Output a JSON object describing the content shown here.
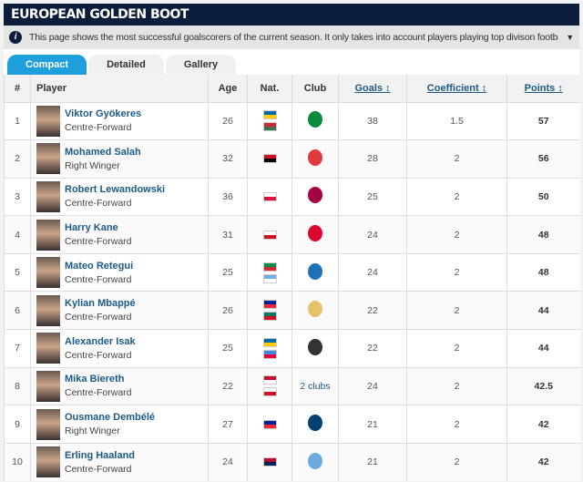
{
  "title": "EUROPEAN GOLDEN BOOT",
  "info": "This page shows the most successful goalscorers of the current season. It only takes into account players playing top divison football in a Euro...",
  "tabs": [
    "Compact",
    "Detailed",
    "Gallery"
  ],
  "headers": {
    "rank": "#",
    "player": "Player",
    "age": "Age",
    "nat": "Nat.",
    "club": "Club",
    "goals": "Goals ↕",
    "coef": "Coefficient ↕",
    "points": "Points ↕"
  },
  "rows": [
    {
      "rank": "1",
      "name": "Viktor Gyökeres",
      "pos": "Centre-Forward",
      "age": "26",
      "flags": [
        [
          "#006aa7",
          "#fecc00"
        ],
        [
          "#ce2939",
          "#477050"
        ]
      ],
      "club": "Sporting CP",
      "clubColor": "#0a8a3c",
      "goals": "38",
      "coef": "1.5",
      "points": "57"
    },
    {
      "rank": "2",
      "name": "Mohamed Salah",
      "pos": "Right Winger",
      "age": "32",
      "flags": [
        [
          "#ce1126",
          "#000000"
        ]
      ],
      "club": "Liverpool",
      "clubColor": "#e03a3e",
      "goals": "28",
      "coef": "2",
      "points": "56"
    },
    {
      "rank": "3",
      "name": "Robert Lewandowski",
      "pos": "Centre-Forward",
      "age": "36",
      "flags": [
        [
          "#ffffff",
          "#dc143c"
        ]
      ],
      "club": "FC Barcelona",
      "clubColor": "#a50044",
      "goals": "25",
      "coef": "2",
      "points": "50"
    },
    {
      "rank": "4",
      "name": "Harry Kane",
      "pos": "Centre-Forward",
      "age": "31",
      "flags": [
        [
          "#ffffff",
          "#ce1124"
        ]
      ],
      "club": "Bayern Munich",
      "clubColor": "#dc052d",
      "goals": "24",
      "coef": "2",
      "points": "48"
    },
    {
      "rank": "5",
      "name": "Mateo Retegui",
      "pos": "Centre-Forward",
      "age": "25",
      "flags": [
        [
          "#009246",
          "#ce2b37"
        ],
        [
          "#74acdf",
          "#ffffff"
        ]
      ],
      "club": "Atalanta",
      "clubColor": "#1e71b8",
      "goals": "24",
      "coef": "2",
      "points": "48"
    },
    {
      "rank": "6",
      "name": "Kylian Mbappé",
      "pos": "Centre-Forward",
      "age": "26",
      "flags": [
        [
          "#002395",
          "#ed2939"
        ],
        [
          "#007a5e",
          "#ce1126"
        ]
      ],
      "club": "Real Madrid",
      "clubColor": "#e8c26a",
      "goals": "22",
      "coef": "2",
      "points": "44"
    },
    {
      "rank": "7",
      "name": "Alexander Isak",
      "pos": "Centre-Forward",
      "age": "25",
      "flags": [
        [
          "#006aa7",
          "#fecc00"
        ],
        [
          "#4189dd",
          "#ea0437"
        ]
      ],
      "club": "Newcastle United",
      "clubColor": "#333333",
      "goals": "22",
      "coef": "2",
      "points": "44"
    },
    {
      "rank": "8",
      "name": "Mika Biereth",
      "pos": "Centre-Forward",
      "age": "22",
      "flags": [
        [
          "#c60c30",
          "#ffffff"
        ],
        [
          "#ffffff",
          "#ce1124"
        ]
      ],
      "club": "2 clubs",
      "clubColor": "",
      "goals": "24",
      "coef": "2",
      "points": "42.5"
    },
    {
      "rank": "9",
      "name": "Ousmane Dembélé",
      "pos": "Right Winger",
      "age": "27",
      "flags": [
        [
          "#002395",
          "#ed2939"
        ]
      ],
      "club": "Paris Saint-Germain",
      "clubColor": "#004170",
      "goals": "21",
      "coef": "2",
      "points": "42"
    },
    {
      "rank": "10",
      "name": "Erling Haaland",
      "pos": "Centre-Forward",
      "age": "24",
      "flags": [
        [
          "#ba0c2f",
          "#00205b"
        ]
      ],
      "club": "Manchester City",
      "clubColor": "#6cabdd",
      "goals": "21",
      "coef": "2",
      "points": "42"
    }
  ]
}
